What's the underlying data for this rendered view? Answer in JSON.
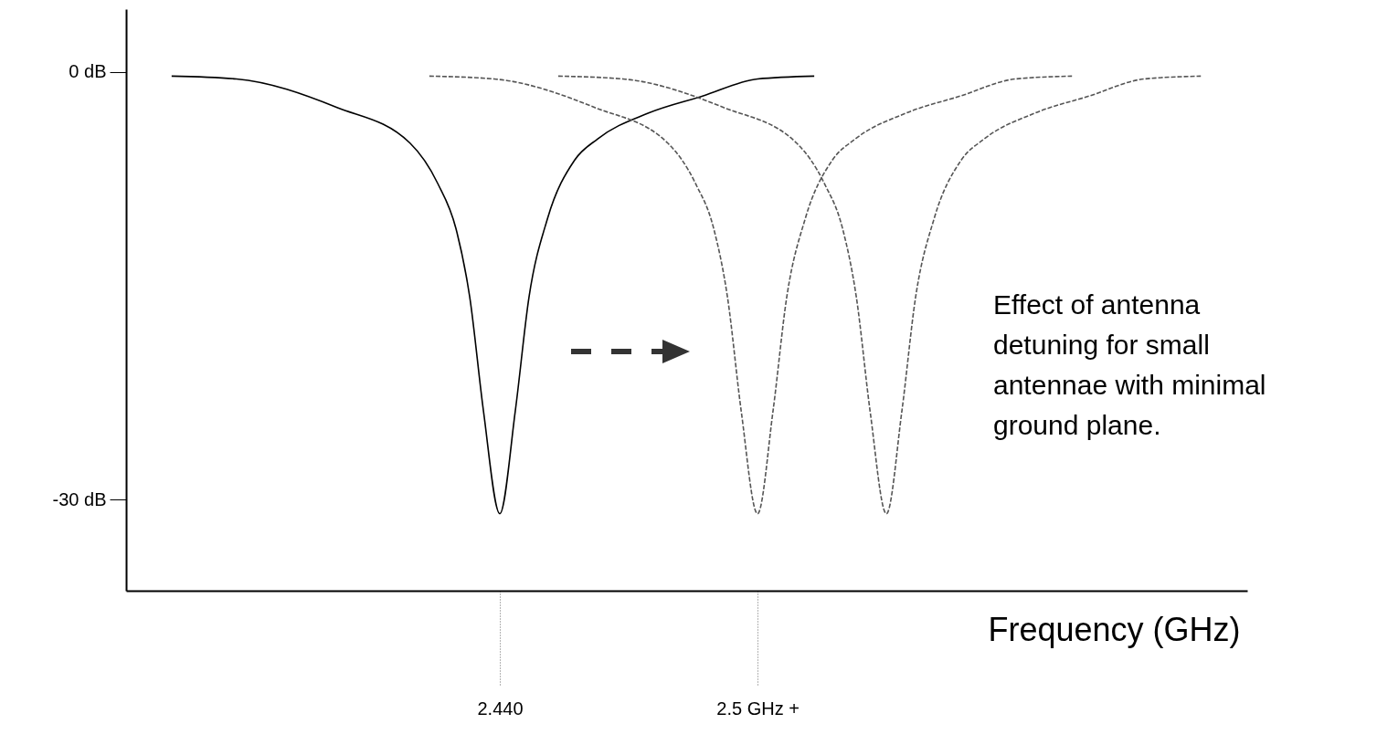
{
  "chart_data": {
    "type": "line",
    "xlabel": "Frequency (GHz)",
    "xlim": [
      2.353,
      2.614
    ],
    "ylim": [
      -36.4,
      4.4
    ],
    "xticks": [
      {
        "value": 2.44,
        "label": "2.440"
      },
      {
        "value": 2.5,
        "label": "2.5 GHz +"
      }
    ],
    "yticks": [
      {
        "value": 0,
        "label": "0 dB"
      },
      {
        "value": -30,
        "label": "-30 dB"
      }
    ],
    "annotations": [
      "Effect of antenna detuning for small antennae with minimal ground plane."
    ],
    "series": [
      {
        "color": "#000000",
        "line_style": "solid",
        "x": [
          2.3636,
          2.3787,
          2.4021,
          2.4191,
          2.4255,
          2.4298,
          2.433,
          2.4362,
          2.44,
          2.4436,
          2.4468,
          2.4511,
          2.4574,
          2.4628,
          2.4745,
          2.4872,
          2.5,
          2.5132
        ],
        "values": [
          -0.3,
          -0.5,
          -2.5,
          -5.0,
          -7.8,
          -11.0,
          -15.8,
          -23.8,
          -31.0,
          -23.8,
          -15.8,
          -10.3,
          -6.2,
          -4.7,
          -2.9,
          -1.7,
          -0.5,
          -0.3
        ]
      },
      {
        "color": "#555555",
        "line_style": "dashed",
        "x": [
          2.4236,
          2.4387,
          2.4621,
          2.4791,
          2.4855,
          2.4898,
          2.493,
          2.4962,
          2.5,
          2.5036,
          2.5068,
          2.5111,
          2.5174,
          2.5228,
          2.5345,
          2.5472,
          2.56,
          2.5732
        ],
        "values": [
          -0.3,
          -0.5,
          -2.5,
          -5.0,
          -7.8,
          -11.0,
          -15.8,
          -23.8,
          -31.0,
          -23.8,
          -15.8,
          -10.3,
          -6.2,
          -4.7,
          -2.9,
          -1.7,
          -0.5,
          -0.3
        ]
      },
      {
        "color": "#555555",
        "line_style": "dashed",
        "x": [
          2.4536,
          2.4687,
          2.4921,
          2.5091,
          2.5155,
          2.5198,
          2.523,
          2.5262,
          2.53,
          2.5336,
          2.5368,
          2.5411,
          2.5474,
          2.5528,
          2.5645,
          2.5772,
          2.59,
          2.6032
        ],
        "values": [
          -0.3,
          -0.5,
          -2.5,
          -5.0,
          -7.8,
          -11.0,
          -15.8,
          -23.8,
          -31.0,
          -23.8,
          -15.8,
          -10.3,
          -6.2,
          -4.7,
          -2.9,
          -1.7,
          -0.5,
          -0.3
        ]
      }
    ]
  }
}
